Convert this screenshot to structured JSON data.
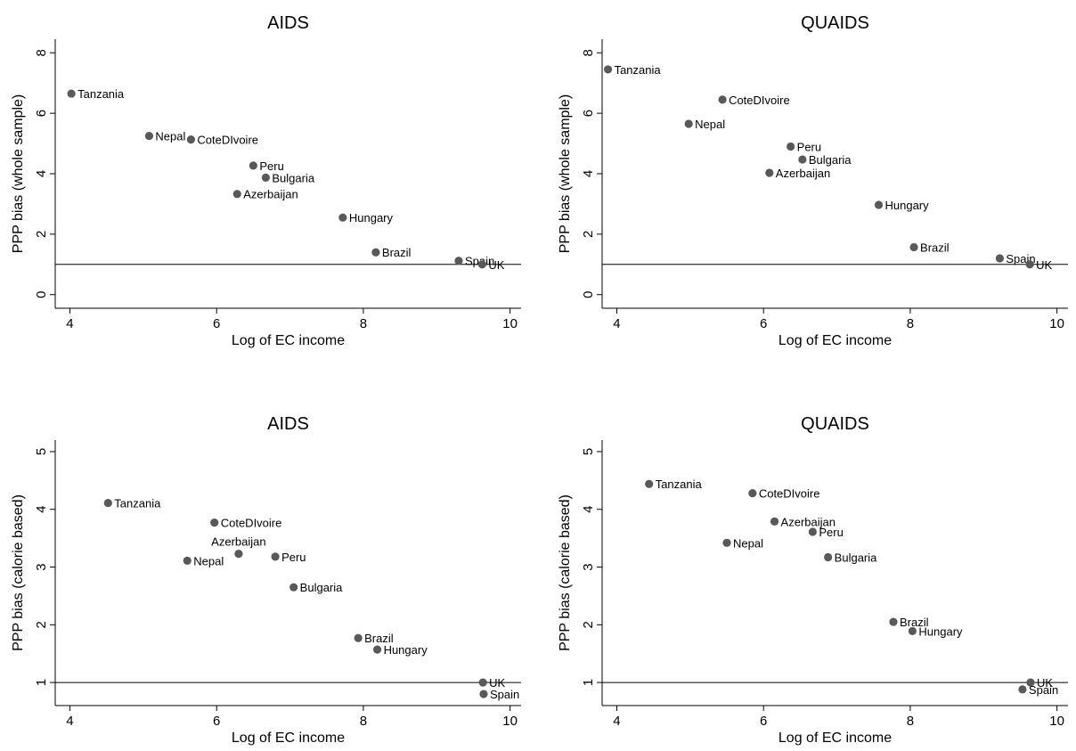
{
  "chart_data": [
    {
      "type": "scatter",
      "title": "AIDS",
      "xlabel": "Log of EC income",
      "ylabel": "PPP bias (whole sample)",
      "xlim": [
        3.8,
        10.15
      ],
      "ylim": [
        -0.45,
        8.45
      ],
      "xticks": [
        4,
        6,
        8,
        10
      ],
      "yticks": [
        0,
        2,
        4,
        6,
        8
      ],
      "reference_line_y": 1,
      "grid": false,
      "points": [
        {
          "label": "Tanzania",
          "x": 4.02,
          "y": 6.65,
          "label_pos": "right"
        },
        {
          "label": "Nepal",
          "x": 5.08,
          "y": 5.25,
          "label_pos": "right"
        },
        {
          "label": "CoteDIvoire",
          "x": 5.65,
          "y": 5.13,
          "label_pos": "right"
        },
        {
          "label": "Peru",
          "x": 6.5,
          "y": 4.27,
          "label_pos": "right"
        },
        {
          "label": "Bulgaria",
          "x": 6.67,
          "y": 3.87,
          "label_pos": "right"
        },
        {
          "label": "Azerbaijan",
          "x": 6.28,
          "y": 3.33,
          "label_pos": "right"
        },
        {
          "label": "Hungary",
          "x": 7.72,
          "y": 2.55,
          "label_pos": "right"
        },
        {
          "label": "Brazil",
          "x": 8.17,
          "y": 1.4,
          "label_pos": "right"
        },
        {
          "label": "Spain",
          "x": 9.3,
          "y": 1.12,
          "label_pos": "right"
        },
        {
          "label": "UK",
          "x": 9.62,
          "y": 1.0,
          "label_pos": "right"
        }
      ]
    },
    {
      "type": "scatter",
      "title": "QUAIDS",
      "xlabel": "Log of EC income",
      "ylabel": "PPP bias (whole sample)",
      "xlim": [
        3.8,
        10.15
      ],
      "ylim": [
        -0.45,
        8.45
      ],
      "xticks": [
        4,
        6,
        8,
        10
      ],
      "yticks": [
        0,
        2,
        4,
        6,
        8
      ],
      "reference_line_y": 1,
      "grid": false,
      "points": [
        {
          "label": "Tanzania",
          "x": 3.88,
          "y": 7.45,
          "label_pos": "right"
        },
        {
          "label": "CoteDIvoire",
          "x": 5.44,
          "y": 6.45,
          "label_pos": "right"
        },
        {
          "label": "Nepal",
          "x": 4.98,
          "y": 5.65,
          "label_pos": "right"
        },
        {
          "label": "Peru",
          "x": 6.37,
          "y": 4.9,
          "label_pos": "right"
        },
        {
          "label": "Bulgaria",
          "x": 6.53,
          "y": 4.47,
          "label_pos": "right"
        },
        {
          "label": "Azerbaijan",
          "x": 6.08,
          "y": 4.03,
          "label_pos": "right"
        },
        {
          "label": "Hungary",
          "x": 7.57,
          "y": 2.97,
          "label_pos": "right"
        },
        {
          "label": "Brazil",
          "x": 8.05,
          "y": 1.57,
          "label_pos": "right"
        },
        {
          "label": "Spain",
          "x": 9.22,
          "y": 1.2,
          "label_pos": "right"
        },
        {
          "label": "UK",
          "x": 9.63,
          "y": 1.0,
          "label_pos": "right"
        }
      ]
    },
    {
      "type": "scatter",
      "title": "AIDS",
      "xlabel": "Log of EC income",
      "ylabel": "PPP bias (calorie based)",
      "xlim": [
        3.8,
        10.15
      ],
      "ylim": [
        0.6,
        5.2
      ],
      "xticks": [
        4,
        6,
        8,
        10
      ],
      "yticks": [
        1,
        2,
        3,
        4,
        5
      ],
      "reference_line_y": 1,
      "grid": false,
      "points": [
        {
          "label": "Tanzania",
          "x": 4.52,
          "y": 4.11,
          "label_pos": "right"
        },
        {
          "label": "CoteDIvoire",
          "x": 5.97,
          "y": 3.77,
          "label_pos": "right"
        },
        {
          "label": "Azerbaijan",
          "x": 6.3,
          "y": 3.23,
          "label_pos": "above"
        },
        {
          "label": "Nepal",
          "x": 5.6,
          "y": 3.11,
          "label_pos": "right"
        },
        {
          "label": "Peru",
          "x": 6.8,
          "y": 3.18,
          "label_pos": "right"
        },
        {
          "label": "Bulgaria",
          "x": 7.05,
          "y": 2.65,
          "label_pos": "right"
        },
        {
          "label": "Brazil",
          "x": 7.93,
          "y": 1.77,
          "label_pos": "right"
        },
        {
          "label": "Hungary",
          "x": 8.19,
          "y": 1.57,
          "label_pos": "right"
        },
        {
          "label": "UK",
          "x": 9.63,
          "y": 1.0,
          "label_pos": "right"
        },
        {
          "label": "Spain",
          "x": 9.64,
          "y": 0.8,
          "label_pos": "right"
        }
      ]
    },
    {
      "type": "scatter",
      "title": "QUAIDS",
      "xlabel": "Log of EC income",
      "ylabel": "PPP bias (calorie based)",
      "xlim": [
        3.8,
        10.15
      ],
      "ylim": [
        0.6,
        5.2
      ],
      "xticks": [
        4,
        6,
        8,
        10
      ],
      "yticks": [
        1,
        2,
        3,
        4,
        5
      ],
      "reference_line_y": 1,
      "grid": false,
      "points": [
        {
          "label": "Tanzania",
          "x": 4.44,
          "y": 4.44,
          "label_pos": "right"
        },
        {
          "label": "CoteDIvoire",
          "x": 5.85,
          "y": 4.28,
          "label_pos": "right"
        },
        {
          "label": "Azerbaijan",
          "x": 6.15,
          "y": 3.79,
          "label_pos": "right"
        },
        {
          "label": "Peru",
          "x": 6.67,
          "y": 3.61,
          "label_pos": "right"
        },
        {
          "label": "Nepal",
          "x": 5.5,
          "y": 3.42,
          "label_pos": "right"
        },
        {
          "label": "Bulgaria",
          "x": 6.88,
          "y": 3.17,
          "label_pos": "right"
        },
        {
          "label": "Brazil",
          "x": 7.77,
          "y": 2.05,
          "label_pos": "right"
        },
        {
          "label": "Hungary",
          "x": 8.03,
          "y": 1.89,
          "label_pos": "right"
        },
        {
          "label": "UK",
          "x": 9.64,
          "y": 1.0,
          "label_pos": "right"
        },
        {
          "label": "Spain",
          "x": 9.53,
          "y": 0.88,
          "label_pos": "right"
        }
      ]
    }
  ]
}
